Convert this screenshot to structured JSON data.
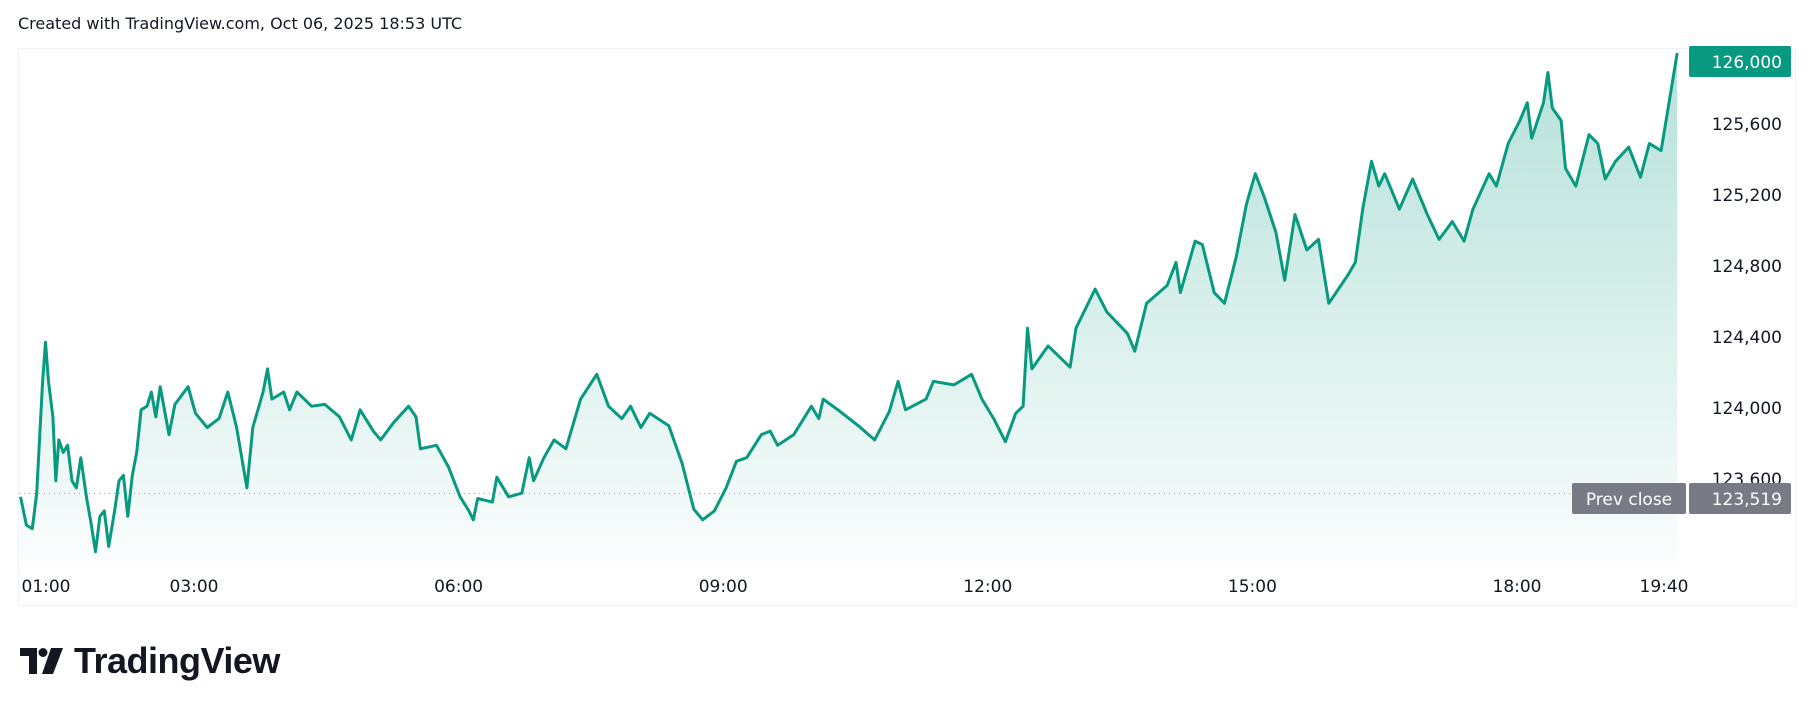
{
  "header": {
    "title": "Created with TradingView.com, Oct 06, 2025 18:53 UTC"
  },
  "logo": {
    "text": "TradingView"
  },
  "colors": {
    "line": "#089981",
    "prev_close_tag": "#787b86",
    "price_tag": "#089981",
    "grid_border": "#f0f3fa"
  },
  "chart_data": {
    "type": "area",
    "xlabel": "",
    "ylabel": "",
    "x_ticks": [
      "01:00",
      "03:00",
      "06:00",
      "09:00",
      "12:00",
      "15:00",
      "18:00",
      "19:40"
    ],
    "y_ticks": [
      "126,000",
      "125,600",
      "125,200",
      "124,800",
      "124,400",
      "124,000",
      "123,600"
    ],
    "ylim": [
      123200,
      126000
    ],
    "grid": false,
    "last_price": {
      "label": "126,000",
      "value": 126000
    },
    "prev_close": {
      "label": "Prev close",
      "value_label": "123,519",
      "value": 123519
    },
    "series": [
      {
        "x": [
          "01:02",
          "01:06",
          "01:10",
          "01:13",
          "01:17",
          "01:19",
          "01:21",
          "01:24",
          "01:26",
          "01:28",
          "01:31",
          "01:34",
          "01:37",
          "01:40",
          "01:43",
          "01:47",
          "01:50",
          "01:53",
          "01:56",
          "01:59",
          "02:02",
          "02:06",
          "02:09",
          "02:12",
          "02:15",
          "02:18",
          "02:21",
          "02:24",
          "02:28",
          "02:31",
          "02:34",
          "02:37",
          "02:43",
          "02:47",
          "02:56",
          "03:01",
          "03:09",
          "03:17",
          "03:23",
          "03:29",
          "03:36",
          "03:40",
          "03:47",
          "03:50",
          "03:53",
          "04:01",
          "04:05",
          "04:10",
          "04:20",
          "04:29",
          "04:39",
          "04:47",
          "04:53",
          "05:02",
          "05:07",
          "05:16",
          "05:26",
          "05:31",
          "05:34",
          "05:45",
          "05:53",
          "06:01",
          "06:07",
          "06:10",
          "06:13",
          "06:23",
          "06:26",
          "06:34",
          "06:43",
          "06:48",
          "06:51",
          "06:58",
          "07:05",
          "07:13",
          "07:23",
          "07:34",
          "07:42",
          "07:51",
          "07:57",
          "08:04",
          "08:10",
          "08:23",
          "08:32",
          "08:40",
          "08:46",
          "08:54",
          "09:02",
          "09:09",
          "09:16",
          "09:26",
          "09:32",
          "09:37",
          "09:48",
          "10:00",
          "10:05",
          "10:08",
          "10:18",
          "10:32",
          "10:43",
          "10:53",
          "10:59",
          "11:04",
          "11:18",
          "11:23",
          "11:37",
          "11:49",
          "11:56",
          "12:04",
          "12:12",
          "12:19",
          "12:24",
          "12:27",
          "12:30",
          "12:41",
          "12:56",
          "13:00",
          "13:13",
          "13:21",
          "13:35",
          "13:40",
          "13:48",
          "14:02",
          "14:08",
          "14:11",
          "14:21",
          "14:26",
          "14:34",
          "14:41",
          "14:49",
          "14:56",
          "15:02",
          "15:08",
          "15:16",
          "15:22",
          "15:29",
          "15:37",
          "15:45",
          "15:52",
          "16:05",
          "16:10",
          "16:15",
          "16:21",
          "16:26",
          "16:30",
          "16:40",
          "16:49",
          "16:59",
          "17:07",
          "17:16",
          "17:24",
          "17:30",
          "17:41",
          "17:46",
          "17:54",
          "18:02",
          "18:07",
          "18:10",
          "18:18",
          "18:21",
          "18:24",
          "18:30",
          "18:33",
          "18:40",
          "18:49",
          "18:55",
          "19:00",
          "19:07",
          "19:16",
          "19:24",
          "19:30",
          "19:38",
          "19:44",
          "19:49"
        ],
        "y": [
          123500,
          123340,
          123320,
          123520,
          124150,
          124370,
          124150,
          123950,
          123590,
          123820,
          123750,
          123790,
          123590,
          123550,
          123720,
          123490,
          123350,
          123190,
          123390,
          123420,
          123220,
          123420,
          123590,
          123620,
          123390,
          123620,
          123750,
          123990,
          124010,
          124090,
          123950,
          124120,
          123850,
          124020,
          124120,
          123970,
          123890,
          123940,
          124090,
          123890,
          123550,
          123890,
          124090,
          124220,
          124050,
          124090,
          123990,
          124090,
          124010,
          124020,
          123950,
          123820,
          123990,
          123870,
          123820,
          123920,
          124010,
          123950,
          123770,
          123790,
          123670,
          123500,
          123420,
          123370,
          123490,
          123470,
          123610,
          123500,
          123520,
          123720,
          123590,
          123720,
          123820,
          123770,
          124050,
          124190,
          124010,
          123940,
          124010,
          123890,
          123970,
          123900,
          123690,
          123430,
          123370,
          123420,
          123550,
          123700,
          123720,
          123850,
          123870,
          123790,
          123850,
          124010,
          123940,
          124050,
          123990,
          123900,
          123820,
          123980,
          124150,
          123990,
          124050,
          124150,
          124130,
          124190,
          124050,
          123940,
          123810,
          123970,
          124010,
          124450,
          124220,
          124350,
          124230,
          124450,
          124670,
          124540,
          124420,
          124320,
          124590,
          124690,
          124820,
          124650,
          124940,
          124920,
          124650,
          124590,
          124850,
          125150,
          125320,
          125190,
          124990,
          124720,
          125090,
          124890,
          124950,
          124590,
          124750,
          124820,
          125120,
          125390,
          125250,
          125320,
          125120,
          125290,
          125090,
          124950,
          125050,
          124940,
          125120,
          125320,
          125250,
          125490,
          125620,
          125720,
          125520,
          125720,
          125890,
          125690,
          125620,
          125350,
          125250,
          125540,
          125490,
          125290,
          125390,
          125470,
          125300,
          125490,
          125450,
          125750,
          126000
        ]
      }
    ]
  }
}
